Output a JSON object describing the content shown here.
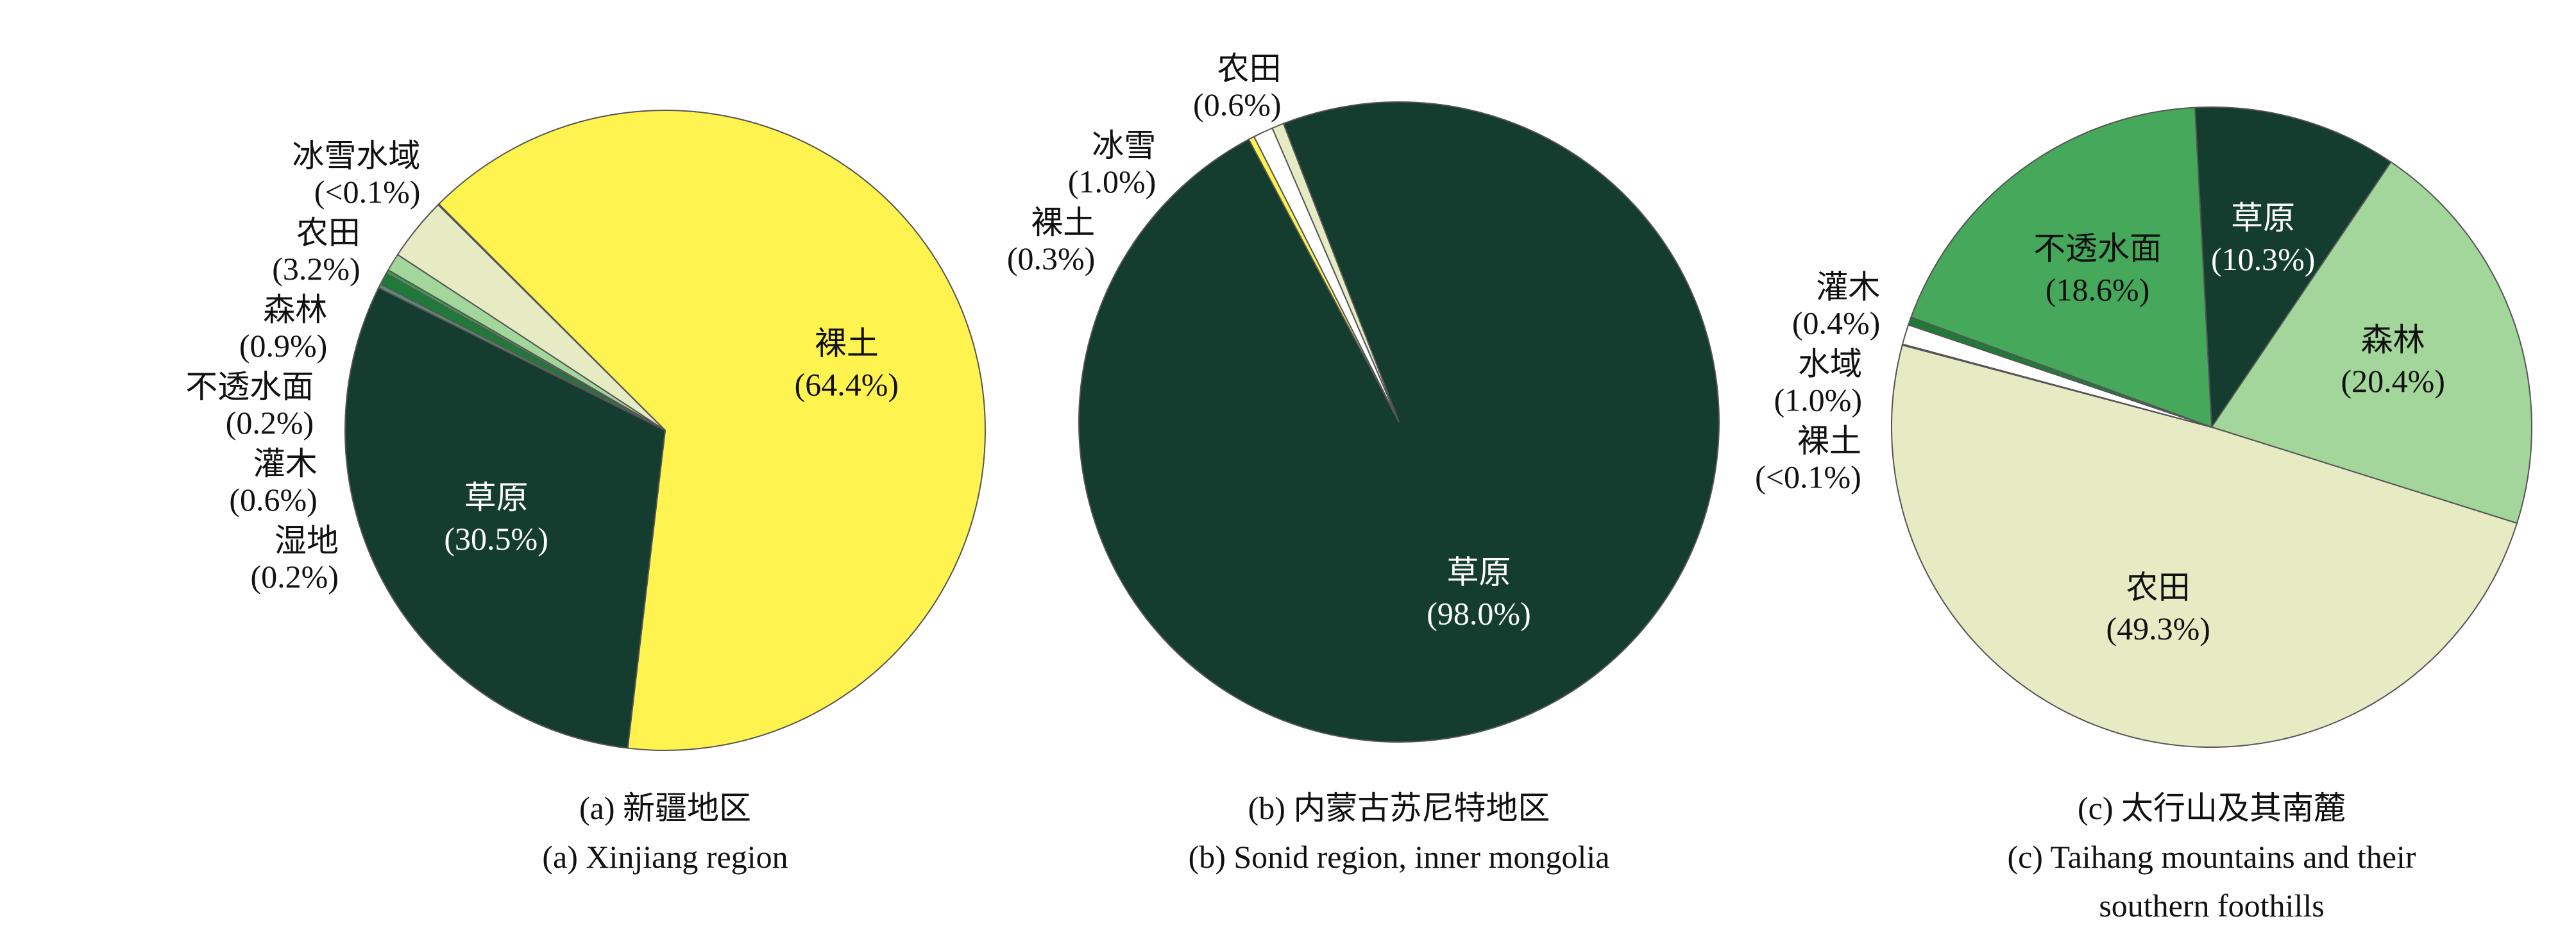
{
  "chart_data": [
    {
      "type": "pie",
      "title": "(a) 新疆地区",
      "subtitle": "(a) Xinjiang region",
      "categories": [
        "裸土",
        "草原",
        "湿地",
        "灌木",
        "不透水面",
        "森林",
        "农田",
        "冰雪水域"
      ],
      "values": [
        64.4,
        30.5,
        0.2,
        0.6,
        0.2,
        0.9,
        3.2,
        0.05
      ],
      "value_labels": [
        "(64.4%)",
        "(30.5%)",
        "(0.2%)",
        "(0.6%)",
        "(0.2%)",
        "(0.9%)",
        "(3.2%)",
        "(<0.1%)"
      ],
      "colors": [
        "#fff44f",
        "#143d2f",
        "#5b8a72",
        "#1f7a3a",
        "#3a9a4f",
        "#a3d69a",
        "#e6ebc4",
        "#ffffff"
      ]
    },
    {
      "type": "pie",
      "title": "(b) 内蒙古苏尼特地区",
      "subtitle": "(b) Sonid region, inner mongolia",
      "categories": [
        "裸土",
        "冰雪",
        "农田",
        "草原"
      ],
      "values": [
        0.3,
        1.0,
        0.6,
        98.0
      ],
      "value_labels": [
        "(0.3%)",
        "(1.0%)",
        "(0.6%)",
        "(98.0%)"
      ],
      "colors": [
        "#fff44f",
        "#ffffff",
        "#e6ebc4",
        "#143d2f"
      ]
    },
    {
      "type": "pie",
      "title": "(c) 太行山及其南麓",
      "subtitle": "(c) Taihang mountains and their southern foothills",
      "categories": [
        "草原",
        "森林",
        "农田",
        "裸土",
        "水域",
        "灌木",
        "不透水面"
      ],
      "values": [
        10.3,
        20.4,
        49.3,
        0.05,
        1.0,
        0.4,
        18.6
      ],
      "value_labels": [
        "(10.3%)",
        "(20.4%)",
        "(49.3%)",
        "(<0.1%)",
        "(1.0%)",
        "(0.4%)",
        "(18.6%)"
      ],
      "colors": [
        "#143d2f",
        "#a3d69a",
        "#e6ebc4",
        "#fff44f",
        "#ffffff",
        "#1f7a3a",
        "#46a85b"
      ]
    }
  ]
}
